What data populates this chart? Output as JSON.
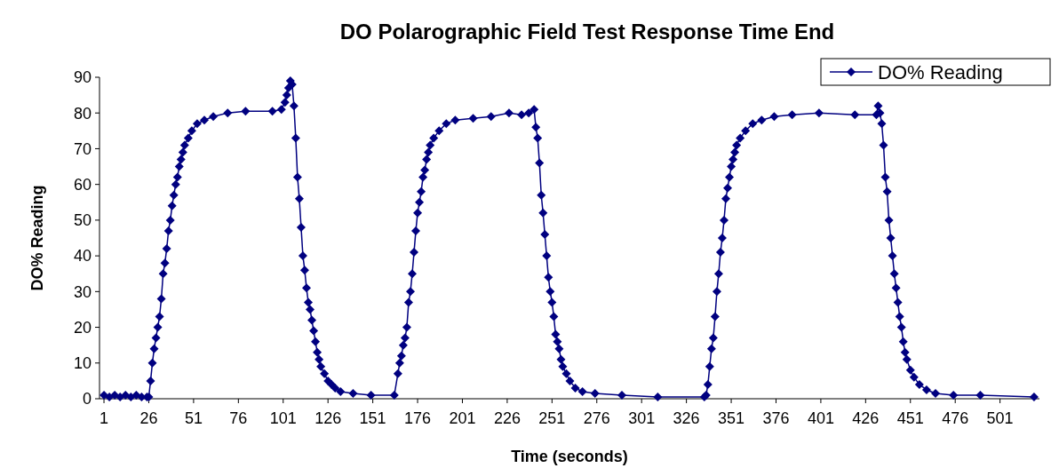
{
  "chart_data": {
    "type": "line",
    "title": "DO Polarographic Field Test Response Time End",
    "xlabel": "Time (seconds)",
    "ylabel": "DO% Reading",
    "xlim": [
      -1.5,
      523
    ],
    "xticks": [
      1,
      26,
      51,
      76,
      101,
      126,
      151,
      176,
      201,
      226,
      251,
      276,
      301,
      326,
      351,
      376,
      401,
      426,
      451,
      476,
      501
    ],
    "ylim": [
      0,
      90
    ],
    "yticks": [
      0,
      10,
      20,
      30,
      40,
      50,
      60,
      70,
      80,
      90
    ],
    "legend": "top right",
    "marker": "diamond",
    "line_style": "solid",
    "grid": false,
    "series": [
      {
        "name": "DO% Reading",
        "color": "#000080",
        "x": [
          1,
          4,
          7,
          10,
          13,
          16,
          19,
          22,
          25,
          26,
          27,
          28,
          29,
          30,
          31,
          32,
          33,
          34,
          35,
          36,
          37,
          38,
          39,
          40,
          41,
          42,
          43,
          44,
          45,
          46,
          48,
          50,
          53,
          57,
          62,
          70,
          80,
          95,
          100,
          102,
          103,
          104,
          105,
          106,
          107,
          108,
          109,
          110,
          111,
          112,
          113,
          114,
          115,
          116,
          117,
          118,
          119,
          120,
          121,
          122,
          124,
          126,
          128,
          130,
          133,
          140,
          150,
          163,
          165,
          166,
          167,
          168,
          169,
          170,
          171,
          172,
          173,
          174,
          175,
          176,
          177,
          178,
          179,
          180,
          181,
          182,
          183,
          185,
          188,
          192,
          197,
          207,
          217,
          227,
          234,
          238,
          241,
          242,
          243,
          244,
          245,
          246,
          247,
          248,
          249,
          250,
          251,
          252,
          253,
          254,
          255,
          256,
          257,
          259,
          261,
          264,
          268,
          275,
          290,
          310,
          336,
          337,
          338,
          339,
          340,
          341,
          342,
          343,
          344,
          345,
          346,
          347,
          348,
          349,
          350,
          351,
          352,
          353,
          354,
          356,
          359,
          363,
          368,
          375,
          385,
          400,
          420,
          432,
          433,
          434,
          435,
          436,
          437,
          438,
          439,
          440,
          441,
          442,
          443,
          444,
          445,
          446,
          447,
          448,
          449,
          451,
          453,
          456,
          460,
          465,
          475,
          490,
          520
        ],
        "values": [
          1,
          0.5,
          1,
          0.5,
          1,
          0.5,
          1,
          0.5,
          0.5,
          0.5,
          5,
          10,
          14,
          17,
          20,
          23,
          28,
          35,
          38,
          42,
          47,
          50,
          54,
          57,
          60,
          62,
          65,
          67,
          69,
          71,
          73,
          75,
          77,
          78,
          79,
          80,
          80.5,
          80.5,
          81,
          83,
          85,
          87,
          89,
          88,
          82,
          73,
          62,
          56,
          48,
          40,
          36,
          31,
          27,
          25,
          22,
          19,
          16,
          13,
          11,
          9,
          7,
          5,
          4,
          3,
          2,
          1.5,
          1,
          1,
          7,
          10,
          12,
          15,
          17,
          20,
          27,
          30,
          35,
          41,
          47,
          52,
          55,
          58,
          62,
          64,
          67,
          69,
          71,
          73,
          75,
          77,
          78,
          78.5,
          79,
          80,
          79.5,
          80,
          81,
          76,
          73,
          66,
          57,
          52,
          46,
          40,
          34,
          30,
          27,
          23,
          18,
          16,
          14,
          11,
          9,
          7,
          5,
          3,
          2,
          1.5,
          1,
          0.5,
          0.5,
          1,
          4,
          9,
          14,
          17,
          23,
          30,
          35,
          41,
          45,
          50,
          56,
          59,
          62,
          65,
          67,
          69,
          71,
          73,
          75,
          77,
          78,
          79,
          79.5,
          80,
          79.5,
          79.5,
          82,
          80,
          77,
          71,
          62,
          58,
          50,
          45,
          40,
          35,
          31,
          27,
          23,
          20,
          16,
          13,
          11,
          8,
          6,
          4,
          2.5,
          1.5,
          1,
          1,
          0.5
        ]
      }
    ]
  }
}
